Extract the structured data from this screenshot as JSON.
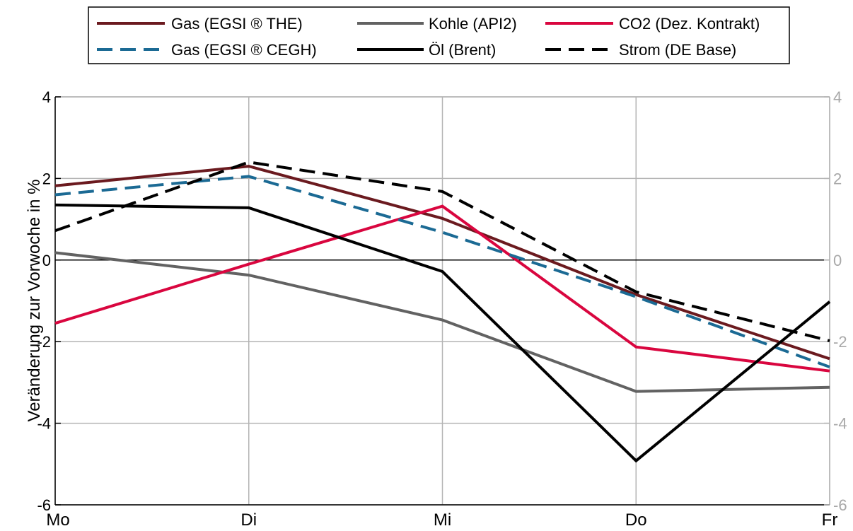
{
  "chart_data": {
    "type": "line",
    "categories": [
      "Mo",
      "Di",
      "Mi",
      "Do",
      "Fr"
    ],
    "ylabel": "Veränderung zur Vorwoche in %",
    "ylim": [
      -6,
      4
    ],
    "yticks": [
      -6,
      -4,
      -2,
      0,
      2,
      4
    ],
    "grid": true,
    "legend_position": "top",
    "series": [
      {
        "name": "Gas (EGSI ® THE)",
        "color": "#6b1a1f",
        "dash": "solid",
        "values": [
          1.82,
          2.3,
          1.02,
          -0.85,
          -2.42
        ]
      },
      {
        "name": "Kohle (API2)",
        "color": "#626262",
        "dash": "solid",
        "values": [
          0.18,
          -0.37,
          -1.47,
          -3.22,
          -3.12
        ]
      },
      {
        "name": "CO2 (Dez. Kontrakt)",
        "color": "#d9063f",
        "dash": "solid",
        "values": [
          -1.55,
          -0.1,
          1.32,
          -2.13,
          -2.72
        ]
      },
      {
        "name": "Gas (EGSI ® CEGH)",
        "color": "#1b6a94",
        "dash": "dashed",
        "values": [
          1.6,
          2.05,
          0.68,
          -0.9,
          -2.62
        ]
      },
      {
        "name": "Öl (Brent)",
        "color": "#000000",
        "dash": "solid",
        "values": [
          1.35,
          1.28,
          -0.28,
          -4.92,
          -1.02
        ]
      },
      {
        "name": "Strom (DE Base)",
        "color": "#000000",
        "dash": "dashed",
        "values": [
          0.72,
          2.4,
          1.68,
          -0.78,
          -1.98
        ]
      }
    ]
  }
}
